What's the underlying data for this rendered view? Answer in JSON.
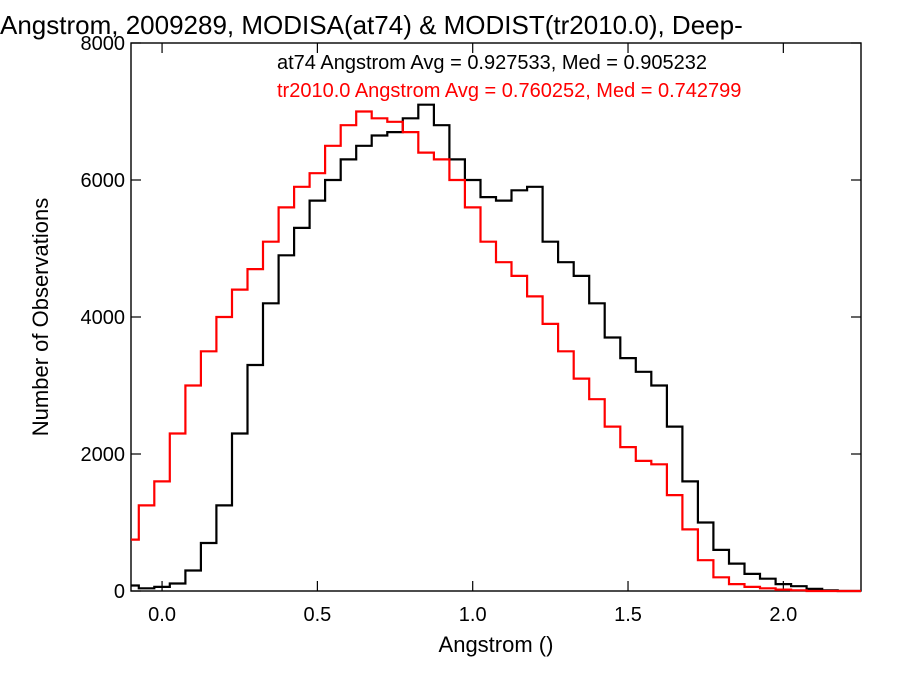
{
  "chart_data": {
    "type": "line",
    "title": "Angstrom, 2009289, MODISA(at74) & MODIST(tr2010.0), Deep-",
    "xlabel": "Angstrom ()",
    "ylabel": "Number of Observations",
    "xlim": [
      -0.1,
      2.25
    ],
    "ylim": [
      0,
      8000
    ],
    "x_ticks": [
      0.0,
      0.5,
      1.0,
      1.5,
      2.0
    ],
    "x_tick_labels": [
      "0.0",
      "0.5",
      "1.0",
      "1.5",
      "2.0"
    ],
    "y_ticks": [
      0,
      2000,
      4000,
      6000,
      8000
    ],
    "y_tick_labels": [
      "0",
      "2000",
      "4000",
      "6000",
      "8000"
    ],
    "grid": false,
    "legend_position": "top-right",
    "series": [
      {
        "name": "at74 Angstrom Avg = 0.927533, Med = 0.905232",
        "color": "#000000",
        "x": [
          -0.1,
          -0.05,
          0.0,
          0.05,
          0.1,
          0.15,
          0.2,
          0.25,
          0.3,
          0.35,
          0.4,
          0.45,
          0.5,
          0.55,
          0.6,
          0.65,
          0.7,
          0.75,
          0.8,
          0.85,
          0.9,
          0.95,
          1.0,
          1.05,
          1.1,
          1.15,
          1.2,
          1.25,
          1.3,
          1.35,
          1.4,
          1.45,
          1.5,
          1.55,
          1.6,
          1.65,
          1.7,
          1.75,
          1.8,
          1.85,
          1.9,
          1.95,
          2.0,
          2.05,
          2.1,
          2.15,
          2.2,
          2.25
        ],
        "values": [
          80,
          40,
          60,
          110,
          300,
          700,
          1250,
          2300,
          3300,
          4200,
          4900,
          5300,
          5700,
          6000,
          6300,
          6500,
          6650,
          6700,
          6900,
          7100,
          6800,
          6300,
          6000,
          5750,
          5700,
          5850,
          5900,
          5100,
          4800,
          4600,
          4200,
          3700,
          3400,
          3200,
          3000,
          2400,
          1600,
          1000,
          600,
          400,
          250,
          180,
          100,
          70,
          30,
          10,
          0,
          0
        ]
      },
      {
        "name": "tr2010.0 Angstrom Avg = 0.760252, Med = 0.742799",
        "color": "#ff0000",
        "x": [
          -0.1,
          -0.05,
          0.0,
          0.05,
          0.1,
          0.15,
          0.2,
          0.25,
          0.3,
          0.35,
          0.4,
          0.45,
          0.5,
          0.55,
          0.6,
          0.65,
          0.7,
          0.75,
          0.8,
          0.85,
          0.9,
          0.95,
          1.0,
          1.05,
          1.1,
          1.15,
          1.2,
          1.25,
          1.3,
          1.35,
          1.4,
          1.45,
          1.5,
          1.55,
          1.6,
          1.65,
          1.7,
          1.75,
          1.8,
          1.85,
          1.9,
          1.95,
          2.0,
          2.05,
          2.1,
          2.15,
          2.2,
          2.25
        ],
        "values": [
          750,
          1250,
          1600,
          2300,
          3000,
          3500,
          4000,
          4400,
          4700,
          5100,
          5600,
          5900,
          6100,
          6500,
          6800,
          7000,
          6900,
          6850,
          6700,
          6400,
          6300,
          6000,
          5600,
          5100,
          4800,
          4600,
          4300,
          3900,
          3500,
          3100,
          2800,
          2400,
          2100,
          1900,
          1850,
          1400,
          900,
          450,
          200,
          100,
          60,
          40,
          20,
          10,
          0,
          0,
          0,
          0
        ]
      }
    ]
  }
}
